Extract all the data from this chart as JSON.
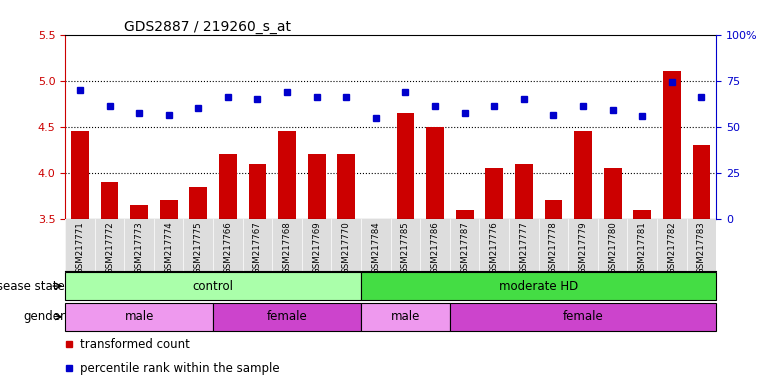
{
  "title": "GDS2887 / 219260_s_at",
  "samples": [
    "GSM217771",
    "GSM217772",
    "GSM217773",
    "GSM217774",
    "GSM217775",
    "GSM217766",
    "GSM217767",
    "GSM217768",
    "GSM217769",
    "GSM217770",
    "GSM217784",
    "GSM217785",
    "GSM217786",
    "GSM217787",
    "GSM217776",
    "GSM217777",
    "GSM217778",
    "GSM217779",
    "GSM217780",
    "GSM217781",
    "GSM217782",
    "GSM217783"
  ],
  "red_values": [
    4.45,
    3.9,
    3.65,
    3.7,
    3.85,
    4.2,
    4.1,
    4.45,
    4.2,
    4.2,
    3.5,
    4.65,
    4.5,
    3.6,
    4.05,
    4.1,
    3.7,
    4.45,
    4.05,
    3.6,
    5.1,
    4.3
  ],
  "blue_values": [
    4.9,
    4.73,
    4.65,
    4.63,
    4.7,
    4.82,
    4.8,
    4.88,
    4.82,
    4.82,
    4.6,
    4.88,
    4.73,
    4.65,
    4.72,
    4.8,
    4.63,
    4.72,
    4.68,
    4.62,
    4.98,
    4.82
  ],
  "ylim": [
    3.5,
    5.5
  ],
  "yticks": [
    3.5,
    4.0,
    4.5,
    5.0,
    5.5
  ],
  "right_yticks": [
    0,
    25,
    50,
    75,
    100
  ],
  "right_ytick_labels": [
    "0",
    "25",
    "50",
    "75",
    "100%"
  ],
  "hlines": [
    4.0,
    4.5,
    5.0
  ],
  "bar_color": "#cc0000",
  "dot_color": "#0000cc",
  "bar_width": 0.6,
  "disease_state_groups": [
    {
      "label": "control",
      "start": 0,
      "end": 10,
      "color": "#aaffaa"
    },
    {
      "label": "moderate HD",
      "start": 10,
      "end": 22,
      "color": "#44dd44"
    }
  ],
  "gender_groups": [
    {
      "label": "male",
      "start": 0,
      "end": 5,
      "color": "#ee99ee"
    },
    {
      "label": "female",
      "start": 5,
      "end": 10,
      "color": "#cc44cc"
    },
    {
      "label": "male",
      "start": 10,
      "end": 13,
      "color": "#ee99ee"
    },
    {
      "label": "female",
      "start": 13,
      "end": 22,
      "color": "#cc44cc"
    }
  ],
  "label_disease": "disease state",
  "label_gender": "gender",
  "legend_red": "transformed count",
  "legend_blue": "percentile rank within the sample",
  "tick_color_left": "#cc0000",
  "tick_color_right": "#0000cc",
  "bg_color": "#ffffff",
  "bar_bottom": 3.5,
  "xtick_bg": "#dddddd"
}
